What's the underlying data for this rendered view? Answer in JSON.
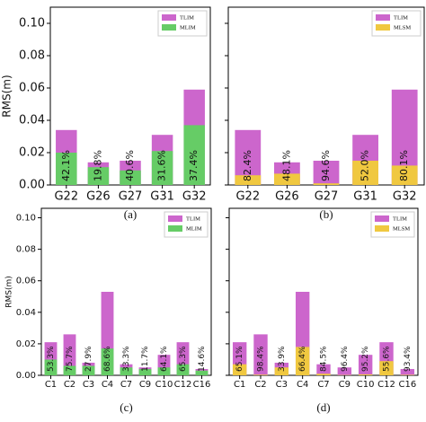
{
  "chart_data": [
    {
      "type": "bar",
      "caption": "(a)",
      "ylabel": "RMS(m)",
      "legend": "upper right",
      "categories": [
        "G22",
        "G26",
        "G27",
        "G31",
        "G32"
      ],
      "series": [
        {
          "name": "TLIM",
          "color": "#cc66cc",
          "values": [
            0.034,
            0.014,
            0.015,
            0.031,
            0.059
          ]
        },
        {
          "name": "MLIM",
          "color": "#66cc66",
          "values": [
            0.02,
            0.011,
            0.009,
            0.021,
            0.037
          ]
        }
      ],
      "annotations": [
        "42.1%",
        "19.8%",
        "40.6%",
        "31.6%",
        "37.4%"
      ],
      "ylim": [
        0,
        0.11
      ],
      "yticks": [
        {
          "value": 0,
          "label": "0.00"
        },
        {
          "value": 0.02,
          "label": "0.02"
        },
        {
          "value": 0.04,
          "label": "0.04"
        },
        {
          "value": 0.06,
          "label": "0.06"
        },
        {
          "value": 0.08,
          "label": "0.08"
        },
        {
          "value": 0.1,
          "label": "0.10"
        }
      ]
    },
    {
      "type": "bar",
      "caption": "(b)",
      "legend": "upper right",
      "categories": [
        "G22",
        "G26",
        "G27",
        "G31",
        "G32"
      ],
      "series": [
        {
          "name": "TLIM",
          "color": "#cc66cc",
          "values": [
            0.034,
            0.014,
            0.015,
            0.031,
            0.059
          ]
        },
        {
          "name": "MLSM",
          "color": "#f0c840",
          "values": [
            0.006,
            0.007,
            0.001,
            0.015,
            0.012
          ]
        }
      ],
      "annotations": [
        "82.4%",
        "48.1%",
        "94.6%",
        "52.0%",
        "80.1%"
      ],
      "ylim": [
        0,
        0.11
      ],
      "yticks": [
        0,
        0.02,
        0.04,
        0.06,
        0.08,
        0.1
      ]
    },
    {
      "type": "bar",
      "caption": "(c)",
      "ylabel": "RMS(m)",
      "legend": "upper right",
      "categories": [
        "C1",
        "C2",
        "C3",
        "C4",
        "C7",
        "C9",
        "C10",
        "C12",
        "C16"
      ],
      "series": [
        {
          "name": "TLIM",
          "color": "#cc66cc",
          "values": [
            0.021,
            0.026,
            0.008,
            0.053,
            0.007,
            0.005,
            0.013,
            0.021,
            0.004
          ]
        },
        {
          "name": "MLIM",
          "color": "#66cc66",
          "values": [
            0.01,
            0.006,
            0.006,
            0.017,
            0.005,
            0.004,
            0.005,
            0.007,
            0.003
          ]
        }
      ],
      "annotations": [
        "53.3%",
        "75.7%",
        "27.9%",
        "68.6%",
        "33.3%",
        "11.7%",
        "64.1%",
        "65.3%",
        "14.6%"
      ],
      "ylim": [
        0,
        0.106
      ],
      "yticks": [
        {
          "value": 0,
          "label": "0.00"
        },
        {
          "value": 0.02,
          "label": "0.02"
        },
        {
          "value": 0.04,
          "label": "0.04"
        },
        {
          "value": 0.06,
          "label": "0.06"
        },
        {
          "value": 0.08,
          "label": "0.08"
        },
        {
          "value": 0.1,
          "label": "0.10"
        }
      ]
    },
    {
      "type": "bar",
      "caption": "(d)",
      "legend": "upper right",
      "categories": [
        "C1",
        "C2",
        "C3",
        "C4",
        "C7",
        "C9",
        "C10",
        "C12",
        "C16"
      ],
      "series": [
        {
          "name": "TLIM",
          "color": "#cc66cc",
          "values": [
            0.021,
            0.026,
            0.008,
            0.053,
            0.007,
            0.005,
            0.013,
            0.021,
            0.004
          ]
        },
        {
          "name": "MLSM",
          "color": "#f0c840",
          "values": [
            0.007,
            0.0004,
            0.005,
            0.018,
            0.001,
            0.0002,
            0.0006,
            0.009,
            0.0003
          ]
        }
      ],
      "annotations": [
        "65.1%",
        "98.4%",
        "33.9%",
        "66.4%",
        "84.5%",
        "96.4%",
        "95.2%",
        "55.6%",
        "93.4%"
      ],
      "ylim": [
        0,
        0.106
      ],
      "yticks": [
        0,
        0.02,
        0.04,
        0.06,
        0.08,
        0.1
      ]
    }
  ]
}
